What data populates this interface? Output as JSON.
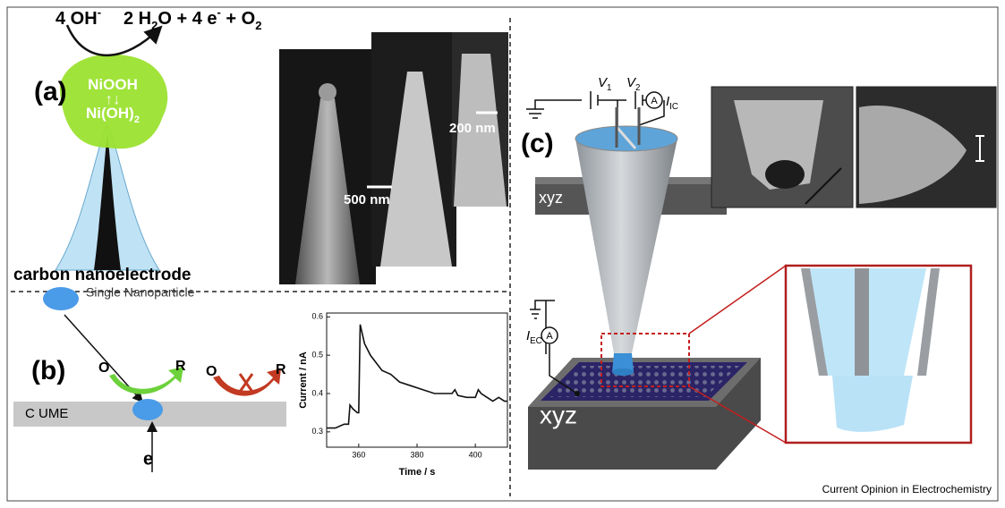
{
  "panel_a": {
    "label": "(a)",
    "equation_left": [
      {
        "text": "4 OH"
      },
      {
        "text": "-",
        "sup": true
      }
    ],
    "equation_right": [
      {
        "text": "2 H"
      },
      {
        "text": "2",
        "sub": true
      },
      {
        "text": "O + 4 e"
      },
      {
        "text": "-",
        "sup": true
      },
      {
        "text": " + O"
      },
      {
        "text": "2",
        "sub": true
      }
    ],
    "species_top": [
      {
        "text": "NiOOH"
      }
    ],
    "species_bottom": [
      {
        "text": "Ni(OH)"
      },
      {
        "text": "2",
        "sub": true
      }
    ],
    "caption": "carbon nanoelectrode",
    "scale_bar_1": "500 nm",
    "scale_bar_2": "200 nm"
  },
  "panel_b": {
    "label": "(b)",
    "particle": "Single Nanoparticle",
    "ox_1": "O",
    "red_1": "R",
    "ox_2": "O",
    "red_2": "R",
    "surface": "C UME",
    "electron": "e"
  },
  "panel_c": {
    "label": "(c)",
    "v1": [
      {
        "text": "V",
        "italic": true
      },
      {
        "text": "1",
        "sub": true
      }
    ],
    "v2": [
      {
        "text": "V",
        "italic": true
      },
      {
        "text": "2",
        "sub": true
      }
    ],
    "i_ic": [
      {
        "text": "I",
        "italic": true
      },
      {
        "text": "IC",
        "sub": true
      }
    ],
    "i_ec": [
      {
        "text": "I",
        "italic": true
      },
      {
        "text": "EC",
        "sub": true
      }
    ],
    "ammeter_1": "A",
    "ammeter_2": "A",
    "stage_top": "xyz",
    "stage_bottom": "xyz"
  },
  "footer": "Current Opinion in Electrochemistry",
  "chart_data": {
    "type": "line",
    "xlabel": "Time / s",
    "ylabel": "Current / nA",
    "color": "#111111",
    "x": [
      349,
      352,
      355,
      356.5,
      357,
      358,
      359.5,
      360,
      360.5,
      362,
      364,
      366,
      368,
      371,
      374,
      378,
      382,
      386,
      390,
      392,
      393,
      394,
      397,
      400,
      401,
      402,
      404,
      406,
      408,
      410,
      411
    ],
    "values": [
      0.31,
      0.31,
      0.32,
      0.32,
      0.37,
      0.36,
      0.35,
      0.35,
      0.58,
      0.53,
      0.5,
      0.48,
      0.46,
      0.45,
      0.43,
      0.42,
      0.41,
      0.4,
      0.4,
      0.4,
      0.41,
      0.395,
      0.39,
      0.39,
      0.41,
      0.4,
      0.39,
      0.38,
      0.39,
      0.38,
      0.38
    ],
    "xlim": [
      349,
      411
    ],
    "ylim": [
      0.26,
      0.61
    ],
    "xticks": [
      360,
      380,
      400
    ],
    "yticks": [
      0.3,
      0.4,
      0.5,
      0.6
    ]
  }
}
